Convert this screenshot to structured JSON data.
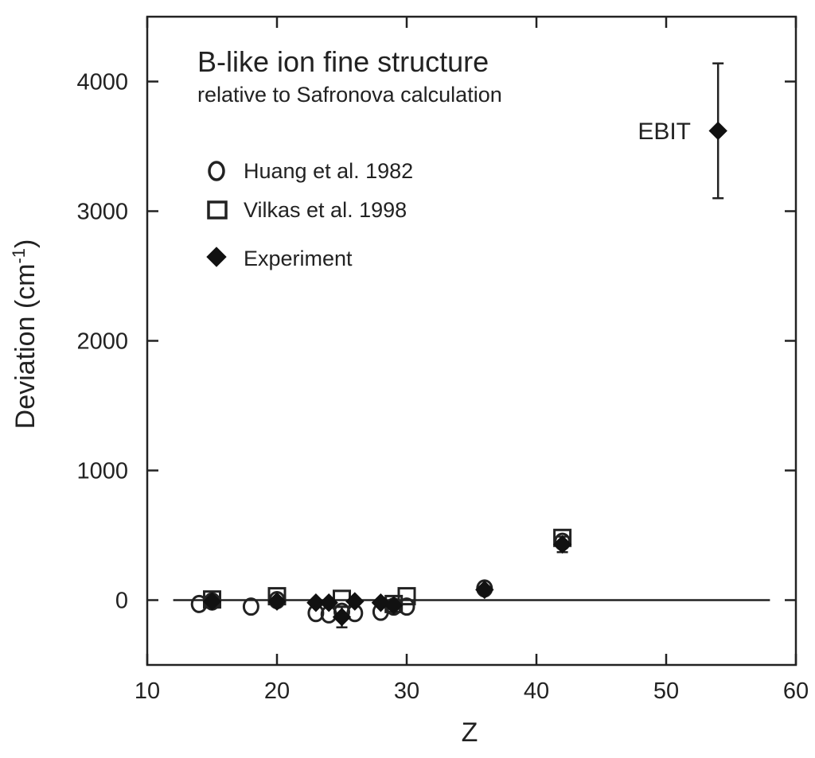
{
  "chart_data": {
    "type": "scatter",
    "title": "B-like ion fine structure",
    "subtitle": "relative to Safronova calculation",
    "xlabel": "Z",
    "ylabel": {
      "main": "Deviation (cm",
      "superscript": "-1",
      "close": ")"
    },
    "xlim": [
      10,
      60
    ],
    "ylim": [
      -500,
      4500
    ],
    "x_ticks": [
      10,
      20,
      30,
      40,
      50,
      60
    ],
    "x_tick_labels": [
      "10",
      "20",
      "30",
      "40",
      "50",
      "60"
    ],
    "y_ticks": [
      0,
      1000,
      2000,
      3000,
      4000
    ],
    "y_tick_labels": [
      "0",
      "1000",
      "2000",
      "3000",
      "4000"
    ],
    "reference_line": {
      "y": 0,
      "x_from": 12,
      "x_to": 58
    },
    "legend": [
      {
        "label": "Huang et al. 1982",
        "marker": "circle"
      },
      {
        "label": "Vilkas et al. 1998",
        "marker": "square"
      },
      {
        "label": "Experiment",
        "marker": "diamond"
      }
    ],
    "series": [
      {
        "name": "Huang et al. 1982",
        "marker": "circle",
        "points": [
          {
            "x": 14,
            "y": -30
          },
          {
            "x": 15,
            "y": -10
          },
          {
            "x": 18,
            "y": -50
          },
          {
            "x": 20,
            "y": 0
          },
          {
            "x": 23,
            "y": -100
          },
          {
            "x": 24,
            "y": -110
          },
          {
            "x": 25,
            "y": -90
          },
          {
            "x": 26,
            "y": -100
          },
          {
            "x": 28,
            "y": -90
          },
          {
            "x": 29,
            "y": -50
          },
          {
            "x": 30,
            "y": -50
          },
          {
            "x": 36,
            "y": 90
          },
          {
            "x": 42,
            "y": 450
          }
        ]
      },
      {
        "name": "Vilkas et al. 1998",
        "marker": "square",
        "points": [
          {
            "x": 15,
            "y": 5
          },
          {
            "x": 20,
            "y": 30
          },
          {
            "x": 25,
            "y": 10
          },
          {
            "x": 29,
            "y": -30
          },
          {
            "x": 30,
            "y": 30
          },
          {
            "x": 42,
            "y": 480
          }
        ]
      },
      {
        "name": "Experiment",
        "marker": "diamond",
        "points": [
          {
            "x": 15,
            "y": -10,
            "err": 20
          },
          {
            "x": 20,
            "y": -10,
            "err": 20
          },
          {
            "x": 23,
            "y": -20,
            "err": 20
          },
          {
            "x": 24,
            "y": -20,
            "err": 20
          },
          {
            "x": 25,
            "y": -130,
            "err": 80
          },
          {
            "x": 26,
            "y": -10,
            "err": 20
          },
          {
            "x": 28,
            "y": -20,
            "err": 20
          },
          {
            "x": 29,
            "y": -40,
            "err": 20
          },
          {
            "x": 36,
            "y": 80,
            "err": 20
          },
          {
            "x": 42,
            "y": 430,
            "err": 60
          },
          {
            "x": 54,
            "y": 3620,
            "err": 520
          }
        ]
      }
    ],
    "annotations": [
      {
        "text": "EBIT",
        "x": 54,
        "y": 3620
      }
    ]
  }
}
